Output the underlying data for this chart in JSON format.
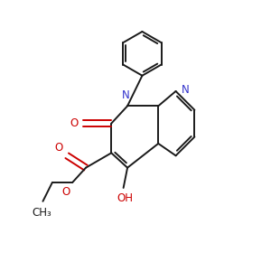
{
  "bg_color": "#ffffff",
  "bond_color": "#1a1a1a",
  "N_color": "#3333cc",
  "O_color": "#cc0000",
  "figsize": [
    3.0,
    3.0
  ],
  "dpi": 100,
  "xlim": [
    0,
    10
  ],
  "ylim": [
    0,
    10
  ]
}
